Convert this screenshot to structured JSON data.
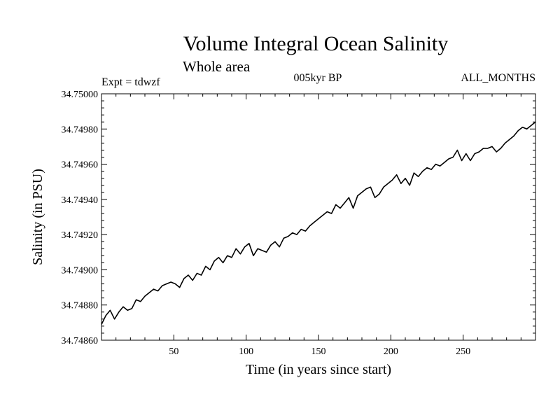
{
  "chart_data": {
    "type": "line",
    "title": "Volume Integral Ocean Salinity",
    "subtitle": "Whole area",
    "annotations": {
      "left": "Expt = tdwzf",
      "center": "005kyr BP",
      "right": "ALL_MONTHS"
    },
    "xlabel": "Time (in years since start)",
    "ylabel": "Salinity (in PSU)",
    "xlim": [
      0,
      300
    ],
    "ylim": [
      34.7486,
      34.75
    ],
    "xticks": [
      50,
      100,
      150,
      200,
      250
    ],
    "yticks": [
      34.7486,
      34.7488,
      34.749,
      34.7492,
      34.7494,
      34.7496,
      34.7498,
      34.75
    ],
    "ytick_labels": [
      "34.74860",
      "34.74880",
      "34.74900",
      "34.74920",
      "34.74940",
      "34.74960",
      "34.74980",
      "34.75000"
    ],
    "grid": false,
    "series": [
      {
        "x": [
          0,
          3,
          6,
          9,
          12,
          15,
          18,
          21,
          24,
          27,
          30,
          33,
          36,
          39,
          42,
          45,
          48,
          51,
          54,
          57,
          60,
          63,
          66,
          69,
          72,
          75,
          78,
          81,
          84,
          87,
          90,
          93,
          96,
          99,
          102,
          105,
          108,
          111,
          114,
          117,
          120,
          123,
          126,
          129,
          132,
          135,
          138,
          141,
          144,
          147,
          150,
          153,
          156,
          159,
          162,
          165,
          168,
          171,
          174,
          177,
          180,
          183,
          186,
          189,
          192,
          195,
          198,
          201,
          204,
          207,
          210,
          213,
          216,
          219,
          222,
          225,
          228,
          231,
          234,
          237,
          240,
          243,
          246,
          249,
          252,
          255,
          258,
          261,
          264,
          267,
          270,
          273,
          276,
          279,
          282,
          285,
          288,
          291,
          294,
          297,
          300
        ],
        "y": [
          34.74869,
          34.74874,
          34.74877,
          34.74872,
          34.74876,
          34.74879,
          34.74877,
          34.74878,
          34.74883,
          34.74882,
          34.74885,
          34.74887,
          34.74889,
          34.74888,
          34.74891,
          34.74892,
          34.74893,
          34.74892,
          34.7489,
          34.74895,
          34.74897,
          34.74894,
          34.74898,
          34.74897,
          34.74902,
          34.749,
          34.74905,
          34.74907,
          34.74904,
          34.74908,
          34.74907,
          34.74912,
          34.74909,
          34.74913,
          34.74915,
          34.74908,
          34.74912,
          34.74911,
          34.7491,
          34.74914,
          34.74916,
          34.74913,
          34.74918,
          34.74919,
          34.74921,
          34.7492,
          34.74923,
          34.74922,
          34.74925,
          34.74927,
          34.74929,
          34.74931,
          34.74933,
          34.74932,
          34.74937,
          34.74935,
          34.74938,
          34.74941,
          34.74935,
          34.74942,
          34.74944,
          34.74946,
          34.74947,
          34.74941,
          34.74943,
          34.74947,
          34.74949,
          34.74951,
          34.74954,
          34.74949,
          34.74952,
          34.74948,
          34.74955,
          34.74953,
          34.74956,
          34.74958,
          34.74957,
          34.7496,
          34.74959,
          34.74961,
          34.74963,
          34.74964,
          34.74968,
          34.74962,
          34.74966,
          34.74962,
          34.74966,
          34.74967,
          34.74969,
          34.74969,
          34.7497,
          34.74967,
          34.74969,
          34.74972,
          34.74974,
          34.74976,
          34.74979,
          34.74981,
          34.7498,
          34.74982,
          34.74984
        ]
      }
    ]
  }
}
